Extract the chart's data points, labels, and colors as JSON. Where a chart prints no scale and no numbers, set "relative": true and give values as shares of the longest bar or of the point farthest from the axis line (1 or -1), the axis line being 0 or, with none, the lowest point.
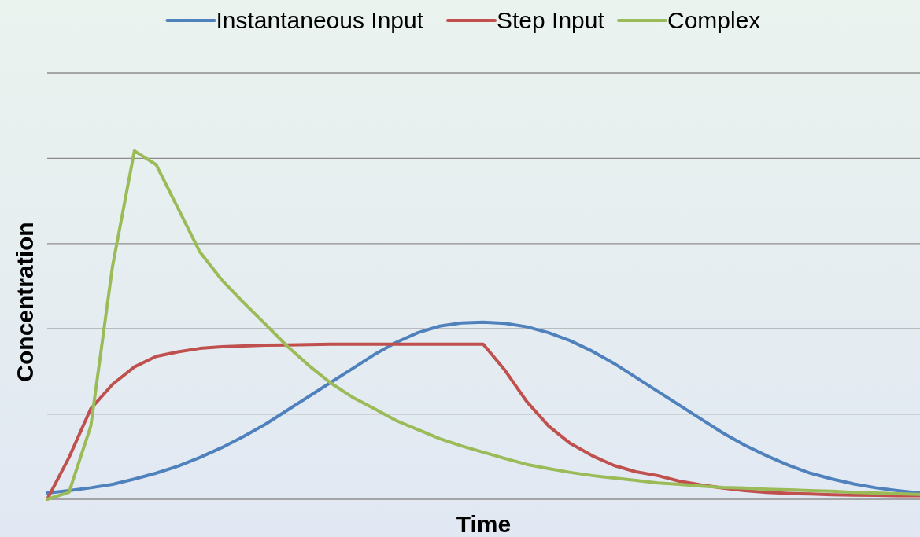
{
  "chart_data": {
    "type": "line",
    "xlabel": "Time",
    "ylabel": "Concentration",
    "relative": true,
    "grid": true,
    "legend": "top",
    "categories": [
      null,
      null,
      null,
      null,
      null,
      null,
      null,
      null,
      null,
      null,
      null,
      null,
      null,
      null,
      null,
      null,
      null,
      null,
      null,
      null,
      null,
      null,
      null,
      null,
      null,
      null,
      null,
      null,
      null,
      null,
      null,
      null,
      null,
      null,
      null,
      null,
      null,
      null,
      null,
      null,
      null
    ],
    "series": [
      {
        "name": "Instantaneous Input",
        "color": "#4f81bd",
        "values": [
          0.018,
          0.025,
          0.033,
          0.043,
          0.058,
          0.075,
          0.095,
          0.12,
          0.148,
          0.18,
          0.215,
          0.255,
          0.295,
          0.335,
          0.375,
          0.415,
          0.45,
          0.478,
          0.497,
          0.506,
          0.508,
          0.505,
          0.495,
          0.478,
          0.455,
          0.425,
          0.39,
          0.35,
          0.31,
          0.27,
          0.23,
          0.19,
          0.155,
          0.125,
          0.098,
          0.075,
          0.058,
          0.044,
          0.033,
          0.025,
          0.018
        ]
      },
      {
        "name": "Step Input",
        "color": "#c0504d",
        "values": [
          0,
          0.12,
          0.26,
          0.33,
          0.38,
          0.41,
          0.423,
          0.433,
          0.438,
          0.44,
          0.442,
          0.443,
          0.444,
          0.445,
          0.445,
          0.445,
          0.445,
          0.445,
          0.445,
          0.445,
          0.445,
          0.37,
          0.28,
          0.21,
          0.16,
          0.125,
          0.097,
          0.079,
          0.068,
          0.052,
          0.041,
          0.032,
          0.025,
          0.02,
          0.017,
          0.015,
          0.013,
          0.012,
          0.011,
          0.01,
          0.01
        ]
      },
      {
        "name": "Complex",
        "color": "#9bbb59",
        "values": [
          0,
          0.02,
          0.21,
          0.67,
          1,
          0.96,
          0.835,
          0.71,
          0.63,
          0.565,
          0.503,
          0.44,
          0.384,
          0.334,
          0.293,
          0.26,
          0.226,
          0.2,
          0.174,
          0.153,
          0.135,
          0.117,
          0.1,
          0.088,
          0.077,
          0.068,
          0.061,
          0.054,
          0.047,
          0.043,
          0.038,
          0.034,
          0.032,
          0.029,
          0.027,
          0.025,
          0.023,
          0.02,
          0.018,
          0.016,
          0.014
        ]
      }
    ]
  }
}
